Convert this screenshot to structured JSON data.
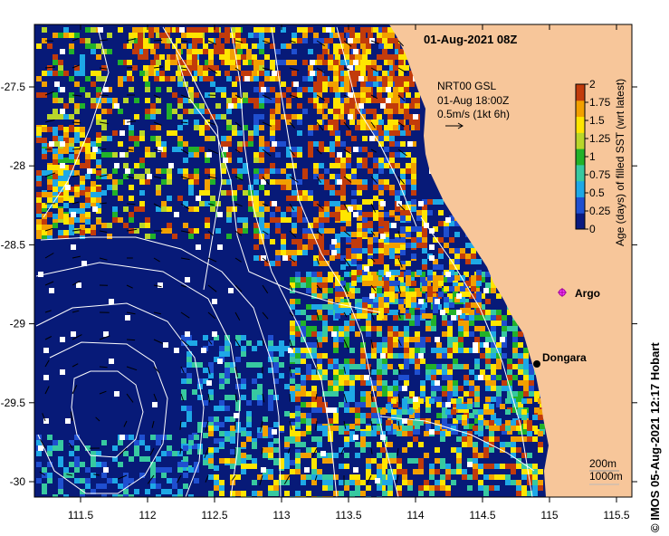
{
  "title": "01-Aug-2021 08Z",
  "current_label": {
    "line1": "NRT00 GSL",
    "line2": "01-Aug 18:00Z",
    "line3": "0.5m/s (1kt 6h)"
  },
  "places": {
    "dongara": "Dongara",
    "argo": "Argo"
  },
  "depth_legend": {
    "line1": "200m",
    "line2": "1000m"
  },
  "credit": "IMOS 05-Aug-2021 12:17 Hobart",
  "credit_symbol": "©",
  "colorbar": {
    "title": "Age (days) of filled SST (wrt latest)",
    "ticks": [
      "0",
      "0.25",
      "0.5",
      "0.75",
      "1",
      "1.25",
      "1.5",
      "1.75",
      "2"
    ],
    "colors": [
      "#0a1a80",
      "#1f4fd0",
      "#1ea8e6",
      "#37c9a0",
      "#22b22a",
      "#b9d62a",
      "#ffe500",
      "#f2a000",
      "#c23b0b"
    ]
  },
  "x_axis": {
    "ticks": [
      "111.5",
      "112",
      "112.5",
      "113",
      "113.5",
      "114",
      "114.5",
      "115",
      "115.5"
    ]
  },
  "y_axis": {
    "ticks": [
      "-27.5",
      "-28",
      "-28.5",
      "-29",
      "-29.5",
      "-30"
    ]
  },
  "colors": {
    "ocean": "#071a78",
    "land": "#f7c69a",
    "contour": "#ffffff"
  }
}
